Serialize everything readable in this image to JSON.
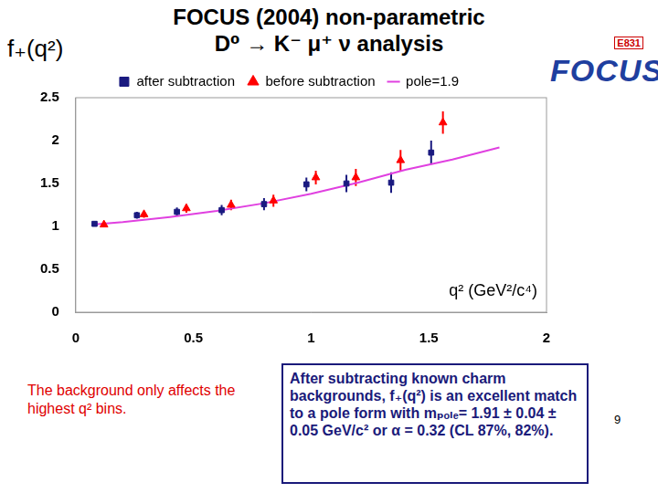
{
  "title": [
    "FOCUS (2004) non-parametric",
    "D⁰ → K⁻ μ⁺ ν analysis"
  ],
  "logo": {
    "label": "E831",
    "name": "FOCUS"
  },
  "note": "The background only affects the highest q² bins.",
  "box_text": "After subtracting known charm backgrounds, f₊(q²) is an excellent match to a pole form with mₚₒₗₑ= 1.91 ± 0.04 ± 0.05 GeV/c² or α = 0.32  (CL 87%, 82%).",
  "page_number": "9",
  "chart_data": {
    "type": "scatter",
    "y_label": "f₊(q²)",
    "x_label": "q² (GeV²/c⁴)",
    "xlim": [
      0,
      2
    ],
    "xticks": [
      0,
      0.5,
      1,
      1.5,
      2
    ],
    "ylim": [
      0,
      2.5
    ],
    "yticks": [
      0,
      0.5,
      1,
      1.5,
      2,
      2.5
    ],
    "grid": false,
    "legend": "top",
    "series": [
      {
        "name": "after subtraction",
        "type": "scatter",
        "color": "#1a1a80",
        "marker": "square",
        "x": [
          0.08,
          0.26,
          0.43,
          0.62,
          0.8,
          0.98,
          1.15,
          1.34,
          1.51
        ],
        "values": [
          1.03,
          1.13,
          1.17,
          1.19,
          1.26,
          1.49,
          1.5,
          1.51,
          1.86
        ],
        "errors": [
          0.02,
          0.04,
          0.05,
          0.06,
          0.07,
          0.08,
          0.1,
          0.12,
          0.14
        ]
      },
      {
        "name": "pole=1.9",
        "type": "line",
        "color": "#e040e0",
        "line_style": "solid",
        "x": [
          0.07,
          0.2,
          0.4,
          0.6,
          0.8,
          1.0,
          1.2,
          1.4,
          1.6,
          1.8
        ],
        "values": [
          1.02,
          1.05,
          1.11,
          1.18,
          1.27,
          1.38,
          1.51,
          1.66,
          1.78,
          1.92
        ]
      },
      {
        "name": "before subtraction",
        "type": "scatter",
        "color": "#ff0000",
        "marker": "triangle",
        "x": [
          0.12,
          0.29,
          0.47,
          0.66,
          0.84,
          1.02,
          1.19,
          1.38,
          1.56
        ],
        "values": [
          1.02,
          1.14,
          1.21,
          1.25,
          1.3,
          1.57,
          1.57,
          1.77,
          2.21
        ],
        "errors": [
          0.02,
          0.04,
          0.05,
          0.06,
          0.07,
          0.08,
          0.1,
          0.12,
          0.13
        ]
      }
    ]
  }
}
